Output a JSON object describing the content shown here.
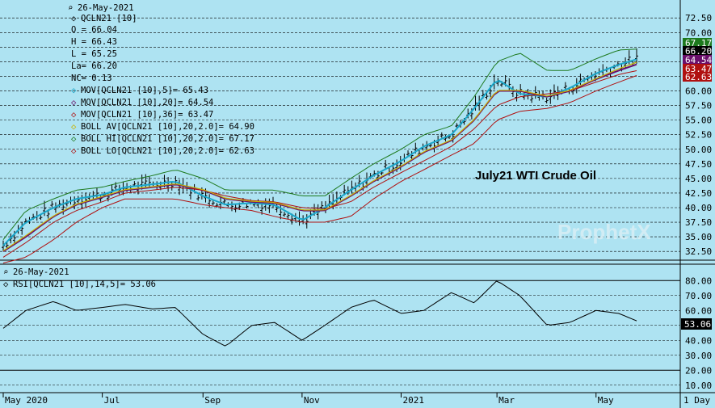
{
  "title_text": "July21 WTI Crude Oil",
  "watermark": "ProphetX",
  "timeframe_label": "1 Day",
  "colors": {
    "background": "#aee3f2",
    "bars": "#000000",
    "mov5": "#1aa6c9",
    "mov20": "#6b0f6b",
    "mov36": "#b01010",
    "boll_av": "#c9b200",
    "boll_hi": "#1e7a1e",
    "boll_lo": "#b01010",
    "rsi": "#000000"
  },
  "price_panel": {
    "date_label": "26-May-2021",
    "symbol": "QCLN21 [10]",
    "ohlc": [
      {
        "label": "O = 66.04"
      },
      {
        "label": "H = 66.43"
      },
      {
        "label": "L = 65.25"
      },
      {
        "label": "La= 66.20"
      },
      {
        "label": "NC= 0.13"
      }
    ],
    "indicators": [
      {
        "text": "MOV[QCLN21 [10],5]= 65.43",
        "color": "#1aa6c9"
      },
      {
        "text": "MOV[QCLN21 [10],20]= 64.54",
        "color": "#6b0f6b"
      },
      {
        "text": "MOV[QCLN21 [10],36]= 63.47",
        "color": "#b01010"
      },
      {
        "text": "BOLL AV[QCLN21 [10],20,2.0]= 64.90",
        "color": "#c9b200"
      },
      {
        "text": "BOLL HI[QCLN21 [10],20,2.0]= 67.17",
        "color": "#1e7a1e"
      },
      {
        "text": "BOLL LO[QCLN21 [10],20,2.0]= 62.63",
        "color": "#b01010"
      }
    ],
    "yticks": [
      "72.50",
      "70.00",
      "67.50",
      "65.00",
      "62.50",
      "60.00",
      "57.50",
      "55.00",
      "52.50",
      "50.00",
      "47.50",
      "45.00",
      "42.50",
      "40.00",
      "37.50",
      "35.00",
      "32.50"
    ],
    "value_tags": [
      {
        "text": "67.17",
        "bg": "#1e7a1e",
        "fg": "#ffffff"
      },
      {
        "text": "66.20",
        "bg": "#000000",
        "fg": "#ffffff"
      },
      {
        "text": "64.54",
        "bg": "#6b0f6b",
        "fg": "#ffffff"
      },
      {
        "text": "63.47",
        "bg": "#b01010",
        "fg": "#ffffff"
      },
      {
        "text": "62.63",
        "bg": "#b01010",
        "fg": "#ffffff"
      }
    ]
  },
  "rsi_panel": {
    "date_label": "26-May-2021",
    "label": "RSI[QCLN21 [10],14,5]= 53.06",
    "yticks": [
      "80.00",
      "70.00",
      "60.00",
      "50.00",
      "40.00",
      "30.00",
      "20.00",
      "10.00"
    ],
    "value_tag": "53.06"
  },
  "x_axis_labels": [
    "May 2020",
    "Jul",
    "Sep",
    "Nov",
    "2021",
    "Mar",
    "May"
  ],
  "chart_data": {
    "type": "line",
    "title": "July21 WTI Crude Oil",
    "dates": [
      "2020-05-01",
      "2020-05-15",
      "2020-06-01",
      "2020-06-15",
      "2020-07-01",
      "2020-07-15",
      "2020-08-01",
      "2020-08-15",
      "2020-09-01",
      "2020-09-15",
      "2020-10-01",
      "2020-10-15",
      "2020-11-01",
      "2020-11-15",
      "2020-12-01",
      "2020-12-15",
      "2021-01-01",
      "2021-01-15",
      "2021-02-01",
      "2021-02-15",
      "2021-03-01",
      "2021-03-15",
      "2021-04-01",
      "2021-04-15",
      "2021-05-01",
      "2021-05-15",
      "2021-05-26"
    ],
    "series": [
      {
        "name": "MOV[QCLN21 [10],5]",
        "values": [
          33.5,
          37.5,
          40.0,
          41.5,
          42.2,
          43.5,
          44.0,
          44.5,
          42.0,
          40.5,
          40.8,
          40.5,
          37.8,
          40.0,
          43.0,
          45.5,
          48.0,
          50.5,
          52.5,
          57.0,
          62.0,
          59.5,
          59.0,
          60.5,
          63.0,
          64.5,
          65.43
        ]
      },
      {
        "name": "MOV[QCLN21 [10],20]",
        "values": [
          32.5,
          35.0,
          38.5,
          40.5,
          41.8,
          43.0,
          43.5,
          44.0,
          43.0,
          41.5,
          41.0,
          40.8,
          39.5,
          39.5,
          42.0,
          44.5,
          47.0,
          49.5,
          51.5,
          55.0,
          60.0,
          60.0,
          59.0,
          60.0,
          62.0,
          63.5,
          64.54
        ]
      },
      {
        "name": "MOV[QCLN21 [10],36]",
        "values": [
          31.5,
          34.0,
          37.5,
          39.5,
          41.0,
          42.5,
          43.0,
          43.5,
          43.0,
          42.0,
          41.2,
          41.0,
          40.0,
          39.8,
          41.0,
          43.5,
          46.0,
          48.0,
          50.5,
          53.5,
          57.5,
          59.0,
          59.5,
          60.0,
          61.5,
          62.8,
          63.47
        ]
      },
      {
        "name": "BOLL AV[QCLN21 [10],20,2.0]",
        "values": [
          32.6,
          35.2,
          38.6,
          40.6,
          41.9,
          43.1,
          43.6,
          44.1,
          43.1,
          41.6,
          41.1,
          40.9,
          39.6,
          39.6,
          42.1,
          44.6,
          47.1,
          49.6,
          51.6,
          55.1,
          60.1,
          60.1,
          59.1,
          60.1,
          62.1,
          63.8,
          64.9
        ]
      },
      {
        "name": "BOLL HI[QCLN21 [10],20,2.0]",
        "values": [
          34.5,
          39.5,
          41.5,
          43.0,
          43.5,
          44.5,
          45.5,
          46.5,
          45.0,
          43.0,
          43.0,
          43.0,
          42.0,
          42.0,
          45.0,
          47.5,
          50.0,
          52.5,
          54.0,
          59.0,
          65.0,
          66.5,
          63.5,
          63.5,
          65.5,
          67.0,
          67.17
        ]
      },
      {
        "name": "BOLL LO[QCLN21 [10],20,2.0]",
        "values": [
          30.5,
          31.5,
          34.5,
          37.5,
          40.0,
          41.5,
          41.5,
          41.5,
          40.5,
          40.0,
          39.5,
          38.5,
          37.5,
          37.5,
          38.5,
          41.5,
          44.5,
          46.5,
          49.0,
          51.0,
          55.0,
          56.5,
          57.0,
          58.0,
          60.0,
          61.5,
          62.63
        ]
      }
    ],
    "rsi": {
      "name": "RSI[QCLN21 [10],14,5]",
      "values": [
        48,
        60,
        66,
        60,
        62,
        64,
        61,
        62,
        44,
        36,
        50,
        52,
        40,
        50,
        62,
        67,
        58,
        60,
        72,
        65,
        80,
        70,
        50,
        52,
        60,
        58,
        53.06
      ]
    },
    "price_range": [
      31.0,
      73.5
    ],
    "rsi_range": [
      5,
      85
    ]
  }
}
